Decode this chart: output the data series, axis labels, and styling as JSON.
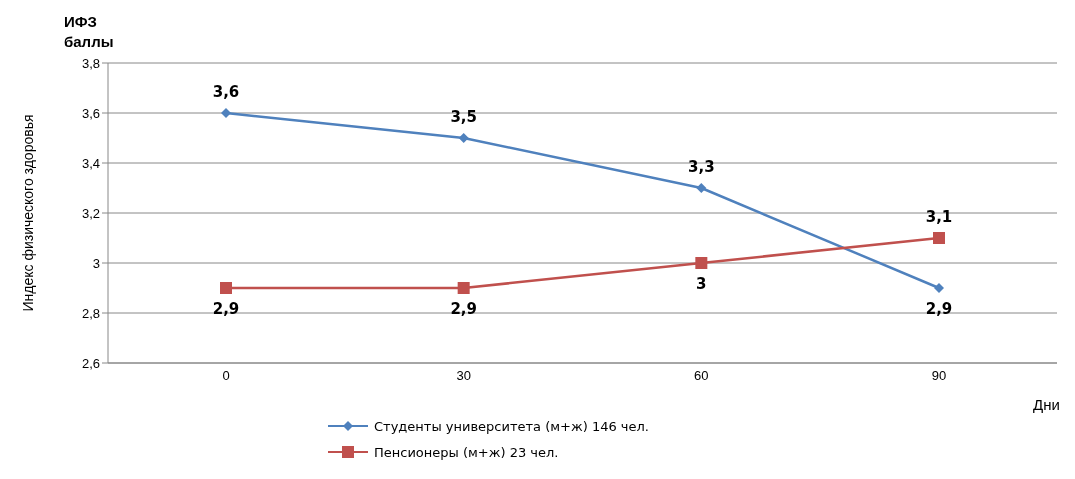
{
  "chart_data": {
    "type": "line",
    "ylabel": "Индекс физического здоровья",
    "xlabel": "Дни",
    "annotations": [
      "ИФЗ баллы"
    ],
    "categories": [
      "0",
      "30",
      "60",
      "90"
    ],
    "series": [
      {
        "name": "Студенты университета (м+ж) 146 чел.",
        "color": "#4f81bd",
        "marker": "diamond",
        "values": [
          3.6,
          3.5,
          3.3,
          2.9
        ],
        "value_labels": [
          "3,6",
          "3,5",
          "3,3",
          "2,9"
        ]
      },
      {
        "name": "Пенсионеры (м+ж) 23 чел.",
        "color": "#c0504d",
        "marker": "square",
        "values": [
          2.9,
          2.9,
          3.0,
          3.1
        ],
        "value_labels": [
          "2,9",
          "2,9",
          "3",
          "3,1"
        ]
      }
    ],
    "ylim": [
      2.6,
      3.8
    ],
    "yticks": [
      {
        "value": 2.6,
        "label": "2,6"
      },
      {
        "value": 2.8,
        "label": "2,8"
      },
      {
        "value": 3,
        "label": "3"
      },
      {
        "value": 3.2,
        "label": "3,2"
      },
      {
        "value": 3.4,
        "label": "3,4"
      },
      {
        "value": 3.6,
        "label": "3,6"
      },
      {
        "value": 3.8,
        "label": "3,8"
      }
    ],
    "grid": "y",
    "legend": "bottom",
    "line_style": "solid"
  }
}
